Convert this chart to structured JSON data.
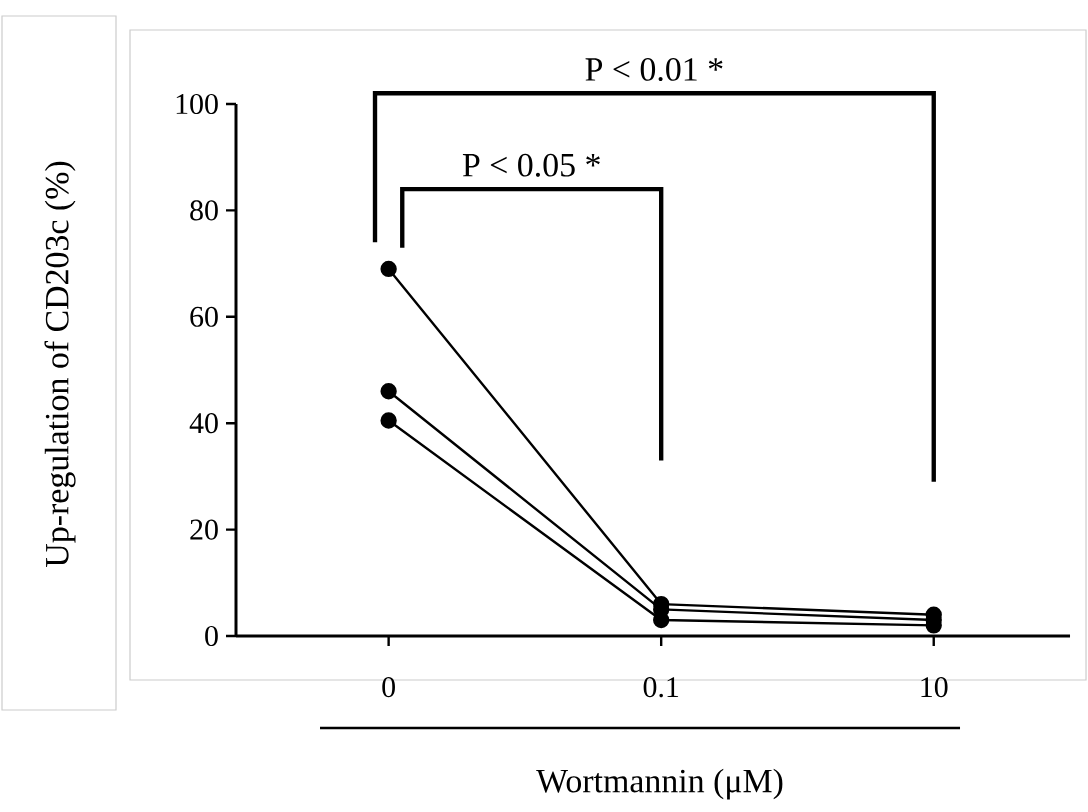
{
  "chart_data": {
    "type": "line",
    "xlabel": "Wortmannin (μM)",
    "ylabel": "Up-regulation of CD203c (%)",
    "categories": [
      "0",
      "0.1",
      "10"
    ],
    "series": [
      {
        "color": "#000000",
        "values": [
          69,
          6,
          4
        ]
      },
      {
        "color": "#000000",
        "values": [
          46,
          5,
          3
        ]
      },
      {
        "color": "#000000",
        "values": [
          40.5,
          3,
          2
        ]
      }
    ],
    "ylim": [
      0,
      100
    ],
    "yticks": [
      0,
      20,
      40,
      60,
      80,
      100
    ],
    "grid": false,
    "marker": "circle",
    "line_style": "solid",
    "annotations": [
      "P < 0.05 *",
      "P < 0.01 *"
    ]
  }
}
